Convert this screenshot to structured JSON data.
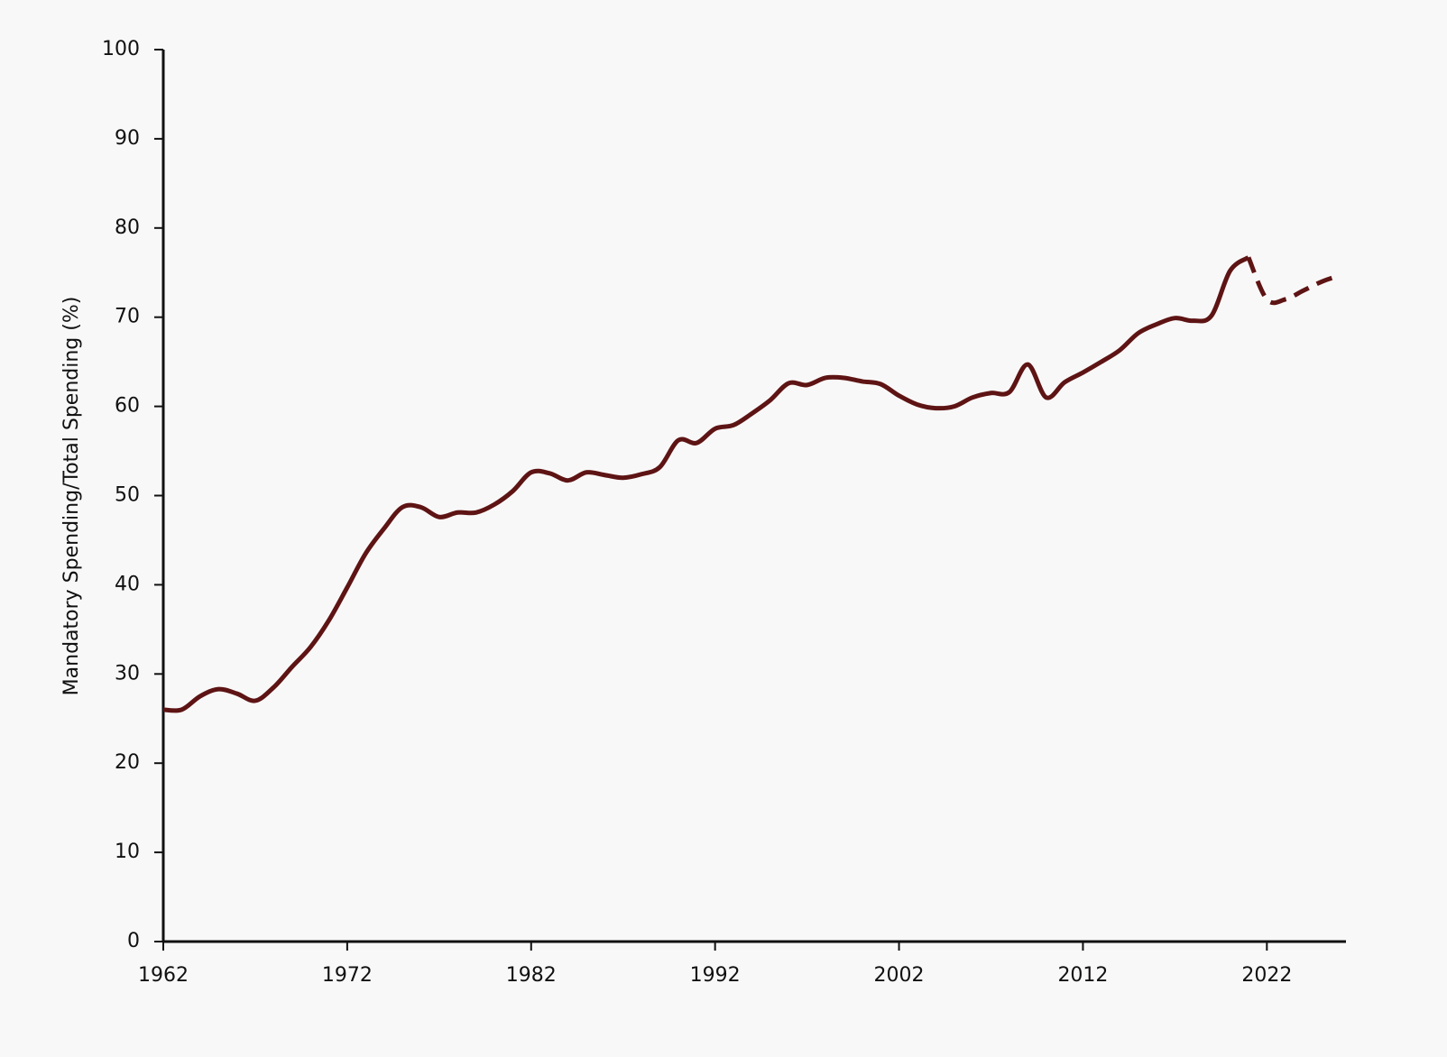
{
  "chart_data": {
    "type": "line",
    "y_label": "Mandatory Spending/Total Spending (%)",
    "x": [
      1962,
      1963,
      1964,
      1965,
      1966,
      1967,
      1968,
      1969,
      1970,
      1971,
      1972,
      1973,
      1974,
      1975,
      1976,
      1977,
      1978,
      1979,
      1980,
      1981,
      1982,
      1983,
      1984,
      1985,
      1986,
      1987,
      1988,
      1989,
      1990,
      1991,
      1992,
      1993,
      1994,
      1995,
      1996,
      1997,
      1998,
      1999,
      2000,
      2001,
      2002,
      2003,
      2004,
      2005,
      2006,
      2007,
      2008,
      2009,
      2010,
      2011,
      2012,
      2013,
      2014,
      2015,
      2016,
      2017,
      2018,
      2019,
      2020,
      2021,
      2022,
      2023,
      2024,
      2025,
      2026
    ],
    "series": [
      {
        "color": "#5e1414",
        "values": [
          26,
          26,
          27.5,
          28.3,
          27.8,
          27,
          28.5,
          30.8,
          33,
          36,
          39.7,
          43.5,
          46.3,
          48.7,
          48.7,
          47.6,
          48.1,
          48.1,
          49,
          50.5,
          52.6,
          52.5,
          51.7,
          52.6,
          52.3,
          52,
          52.4,
          53.2,
          56.2,
          55.9,
          57.5,
          57.9,
          59.2,
          60.7,
          62.6,
          62.4,
          63.2,
          63.2,
          62.8,
          62.5,
          61.2,
          60.2,
          59.8,
          60,
          61,
          61.5,
          61.6,
          64.7,
          61,
          62.7,
          63.8,
          65,
          66.3,
          68.2,
          69.2,
          69.9,
          69.6,
          70.2,
          75.2,
          76.7,
          null,
          null,
          null,
          null,
          null
        ]
      },
      {
        "color": "#5e1414",
        "dashed": true,
        "values": [
          null,
          null,
          null,
          null,
          null,
          null,
          null,
          null,
          null,
          null,
          null,
          null,
          null,
          null,
          null,
          null,
          null,
          null,
          null,
          null,
          null,
          null,
          null,
          null,
          null,
          null,
          null,
          null,
          null,
          null,
          null,
          null,
          null,
          null,
          null,
          null,
          null,
          null,
          null,
          null,
          null,
          null,
          null,
          null,
          null,
          null,
          null,
          null,
          null,
          null,
          null,
          null,
          null,
          null,
          null,
          null,
          null,
          null,
          null,
          76.7,
          72,
          72,
          73,
          74,
          74.7
        ]
      }
    ],
    "xlim": [
      1962,
      2026.3
    ],
    "xticks": [
      1962,
      1972,
      1982,
      1992,
      2002,
      2012,
      2022
    ],
    "ylim": [
      0,
      100
    ],
    "yticks": [
      0,
      10,
      20,
      30,
      40,
      50,
      60,
      70,
      80,
      90,
      100
    ]
  }
}
